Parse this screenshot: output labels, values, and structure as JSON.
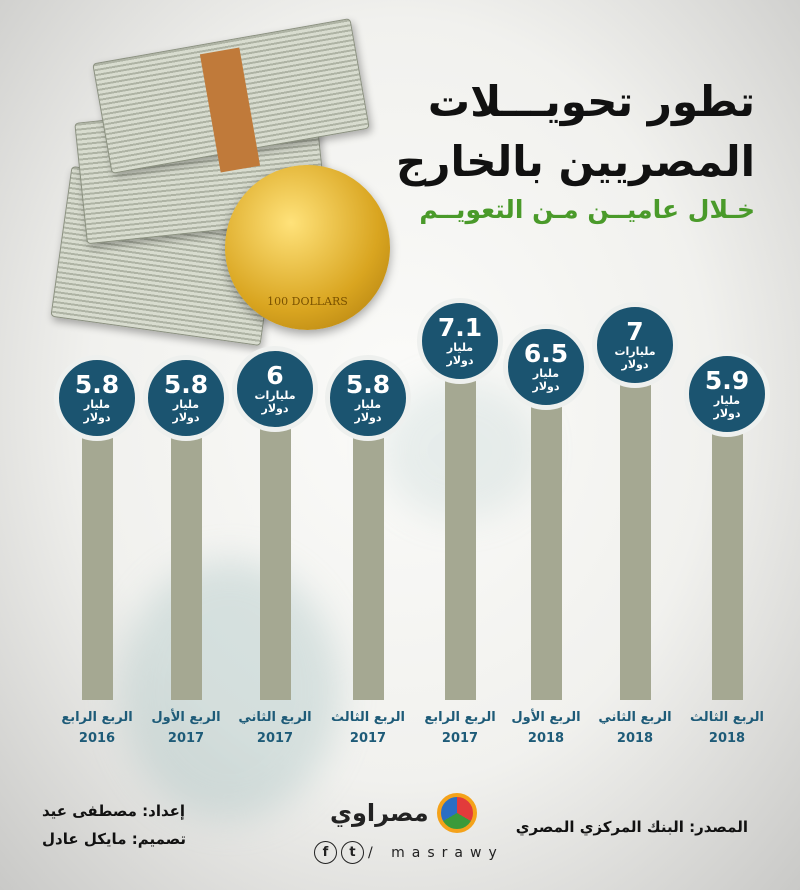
{
  "title": {
    "line1": "تطور تحويـــلات",
    "line2": "المصريين بالخارج"
  },
  "subtitle": "خـلال عاميــن مـن التعويــم",
  "coin_text": "100 DOLLARS",
  "colors": {
    "bubble": "#1b5470",
    "bar": "#a5a892",
    "label": "#1e5b78",
    "subtitle": "#4a9a2a"
  },
  "chart_data": {
    "type": "bar",
    "title": "تطور تحويلات المصريين بالخارج",
    "categories": [
      {
        "quarter": "الربع الرابع",
        "year": "2016"
      },
      {
        "quarter": "الربع الأول",
        "year": "2017"
      },
      {
        "quarter": "الربع الثاني",
        "year": "2017"
      },
      {
        "quarter": "الربع الثالث",
        "year": "2017"
      },
      {
        "quarter": "الربع الرابع",
        "year": "2017"
      },
      {
        "quarter": "الربع الأول",
        "year": "2018"
      },
      {
        "quarter": "الربع الثاني",
        "year": "2018"
      },
      {
        "quarter": "الربع الثالث",
        "year": "2018"
      }
    ],
    "values": [
      5.8,
      5.8,
      6,
      5.8,
      7.1,
      6.5,
      7,
      5.9
    ],
    "display_values": [
      "5.8",
      "5.8",
      "6",
      "5.8",
      "7.1",
      "6.5",
      "7",
      "5.9"
    ],
    "units": [
      "مليار دولار",
      "مليار دولار",
      "مليارات دولار",
      "مليار دولار",
      "مليار دولار",
      "مليار دولار",
      "مليارات دولار",
      "مليار دولار"
    ],
    "order": "left-to-right chronological"
  },
  "footer": {
    "source": "المصدر: البنك المركزي المصري",
    "prepared_by": "إعداد: مصطفى عيد",
    "design_by": "تصميم: مايكل عادل",
    "brand": "مصراوي",
    "handle": "/ masrawy",
    "facebook_glyph": "f",
    "twitter_glyph": "t"
  }
}
